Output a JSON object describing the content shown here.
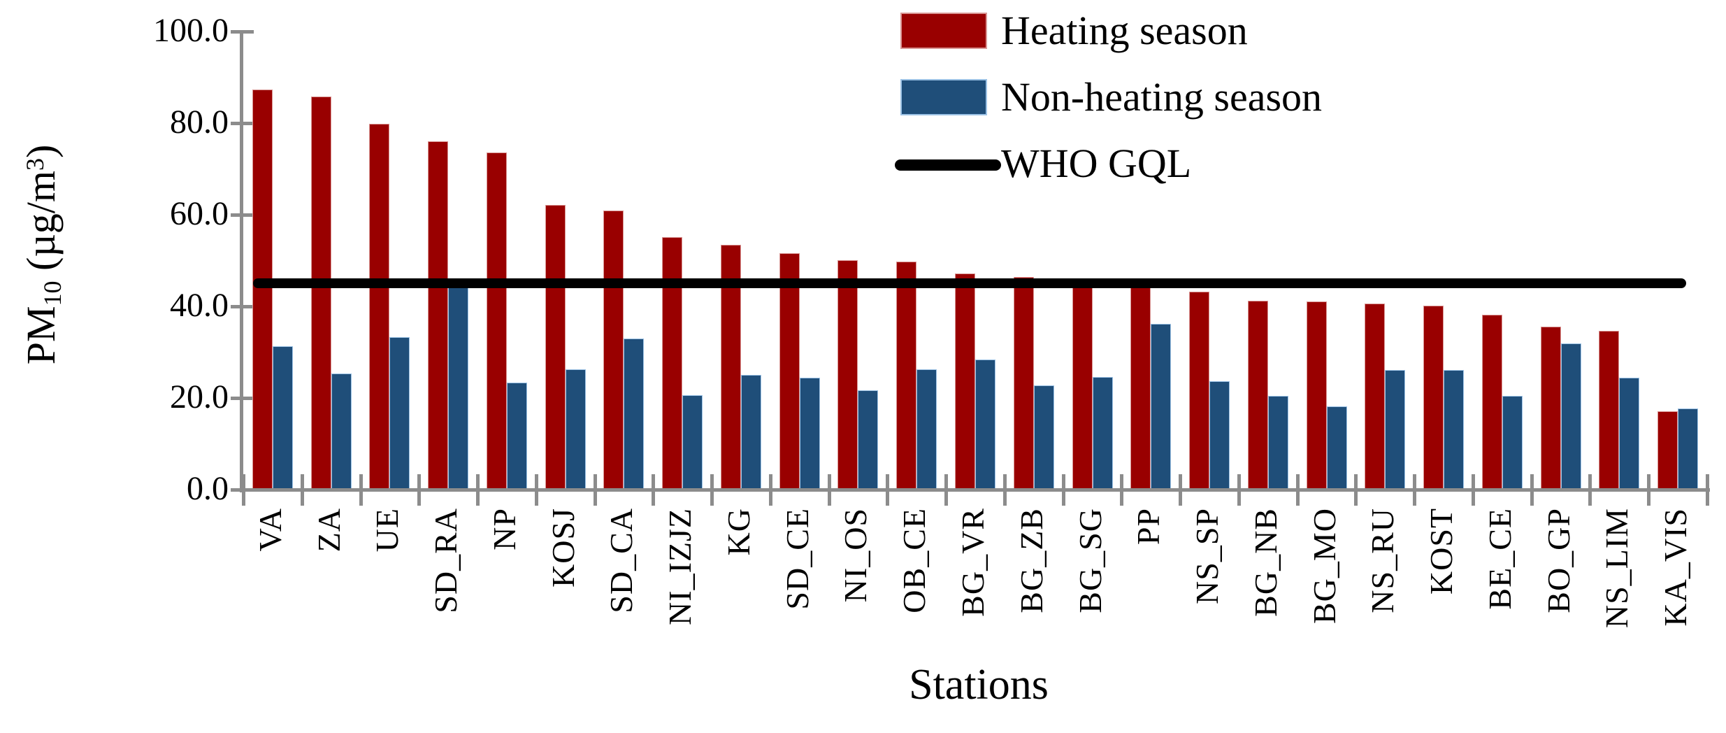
{
  "figure_colors": {
    "heating": "#990000",
    "heating_border": "#D99694",
    "non_heating": "#1F4E79",
    "non_heating_border": "#9CC2E5",
    "axis_gray": "#8C8C8C",
    "reference_black": "#000000"
  },
  "legend": {
    "heating_label": "Heating season",
    "non_heating_label": "Non-heating season",
    "who_label": "WHO GQL"
  },
  "axes": {
    "x_title": "Stations",
    "y_title_pre": "PM",
    "y_title_sub": "10",
    "y_title_mid": " (µg/m",
    "y_title_sup": "3",
    "y_title_post": ")"
  },
  "chart_data": {
    "type": "bar",
    "title": "",
    "xlabel": "Stations",
    "ylabel": "PM10 (µg/m3)",
    "ylim": [
      0,
      100
    ],
    "y_ticks": [
      "0.0",
      "20.0",
      "40.0",
      "60.0",
      "80.0",
      "100.0"
    ],
    "grid": false,
    "legend_position": "top-right",
    "categories": [
      "VA",
      "ZA",
      "UE",
      "SD_RA",
      "NP",
      "KOSJ",
      "SD_CA",
      "NI_IZJZ",
      "KG",
      "SD_CE",
      "NI_OS",
      "OB_CE",
      "BG_VR",
      "BG_ZB",
      "BG_SG",
      "PP",
      "NS_SP",
      "BG_NB",
      "BG_MO",
      "NS_RU",
      "KOST",
      "BE_CE",
      "BO_GP",
      "NS_LIM",
      "KA_VIS"
    ],
    "series": [
      {
        "name": "Heating season",
        "color": "#990000",
        "values": [
          87.0,
          85.5,
          79.6,
          75.8,
          73.3,
          61.8,
          60.6,
          54.8,
          53.2,
          51.3,
          49.8,
          49.5,
          46.9,
          46.1,
          44.4,
          44.3,
          42.9,
          40.9,
          40.8,
          40.3,
          39.9,
          37.9,
          35.3,
          34.4,
          16.8
        ]
      },
      {
        "name": "Non-heating season",
        "color": "#1F4E79",
        "values": [
          31.0,
          25.0,
          33.0,
          43.9,
          23.0,
          25.9,
          32.6,
          20.3,
          24.8,
          24.1,
          21.3,
          26.0,
          28.1,
          22.4,
          24.2,
          35.9,
          23.4,
          20.1,
          17.8,
          25.8,
          25.8,
          20.1,
          31.6,
          24.1,
          17.4
        ]
      }
    ],
    "reference_line": {
      "name": "WHO GQL",
      "value": 45,
      "color": "#000000"
    }
  }
}
